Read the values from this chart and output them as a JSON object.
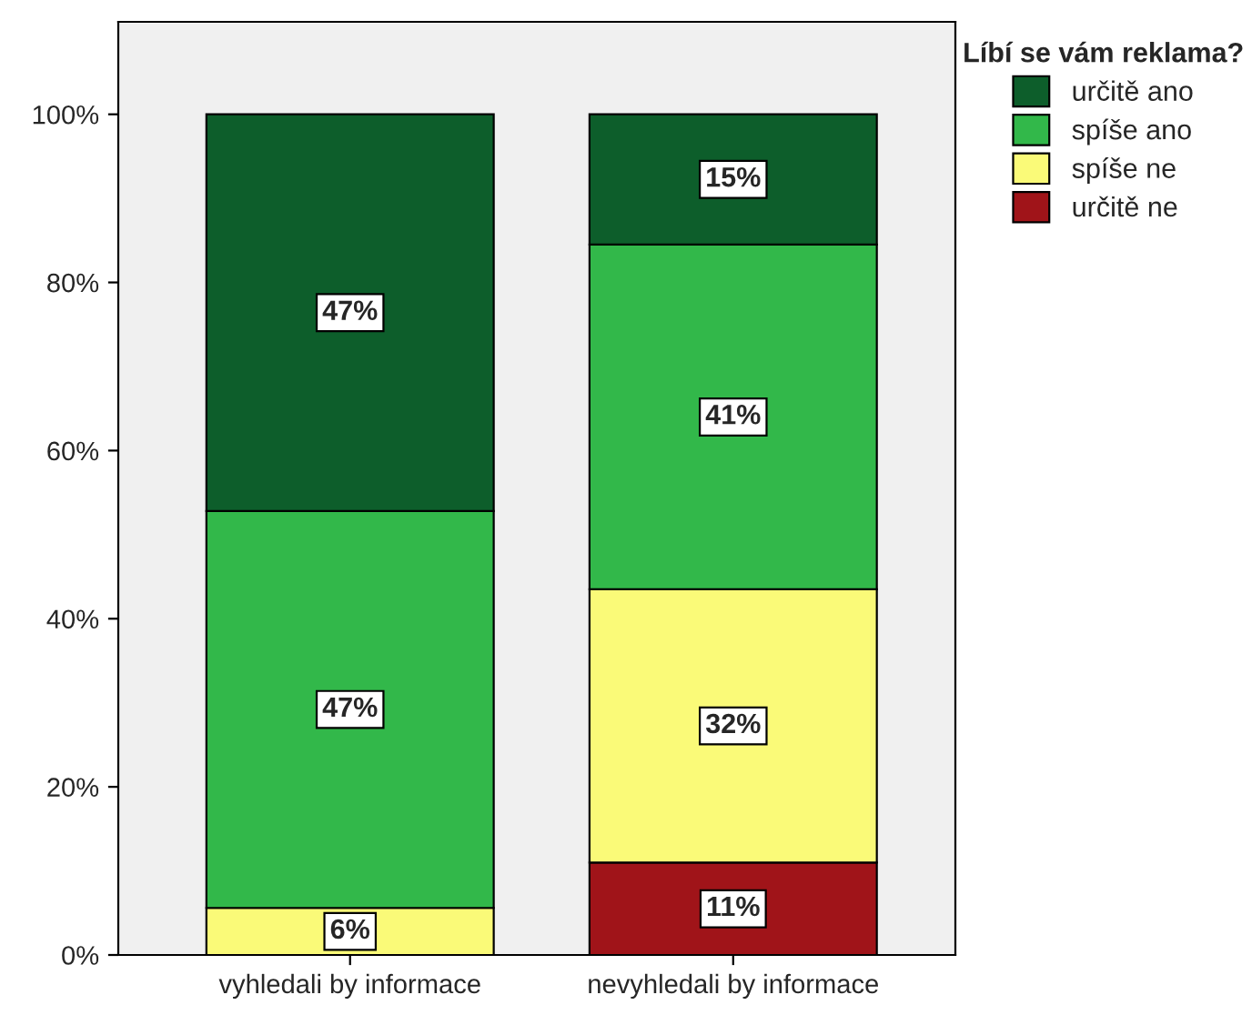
{
  "chart_data": {
    "type": "bar",
    "stacked": true,
    "legend_title": "Líbí se vám reklama?",
    "legend": "top right",
    "categories": [
      "vyhledali by informace",
      "nevyhledali by informace"
    ],
    "series": [
      {
        "name": "určitě ne",
        "color": "#a01419",
        "values": [
          null,
          11
        ],
        "value_labels": [
          null,
          "11%"
        ]
      },
      {
        "name": "spíše ne",
        "color": "#fafa78",
        "values": [
          5.6,
          32.5
        ],
        "value_labels": [
          "6%",
          "32%"
        ]
      },
      {
        "name": "spíše ano",
        "color": "#32b84a",
        "values": [
          47.2,
          41
        ],
        "value_labels": [
          "47%",
          "41%"
        ]
      },
      {
        "name": "určitě ano",
        "color": "#0d5e2b",
        "values": [
          47.2,
          15.5
        ],
        "value_labels": [
          "47%",
          "15%"
        ]
      }
    ],
    "ylim": [
      0,
      111
    ],
    "yticks": [
      {
        "value": 0,
        "label": "0%"
      },
      {
        "value": 20,
        "label": "20%"
      },
      {
        "value": 40,
        "label": "40%"
      },
      {
        "value": 60,
        "label": "60%"
      },
      {
        "value": 80,
        "label": "80%"
      },
      {
        "value": 100,
        "label": "100%"
      }
    ],
    "grid": false
  }
}
